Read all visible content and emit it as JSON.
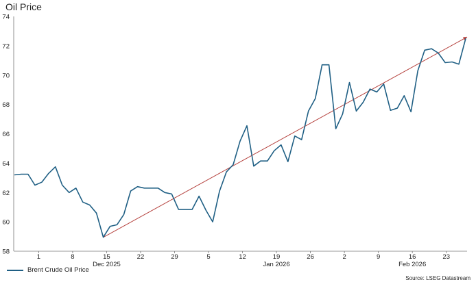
{
  "chart_data": {
    "type": "line",
    "title": "Oil Price",
    "source": "Source: LSEG Datastream",
    "ylim": [
      58,
      74
    ],
    "y_ticks": [
      "58",
      "60",
      "62",
      "64",
      "66",
      "68",
      "70",
      "72",
      "74"
    ],
    "x_tick_labels": [
      "1",
      "8",
      "15",
      "22",
      "29",
      "5",
      "12",
      "19",
      "26",
      "2",
      "9",
      "16",
      "23"
    ],
    "x_period_labels": [
      "Dec 2025",
      "Jan 2026",
      "Feb 2026"
    ],
    "grid": false,
    "legend_position": "bottom-left",
    "series": [
      {
        "name": "Brent Crude Oil Price",
        "color": "#1f5f84",
        "values": [
          63.2,
          63.25,
          63.25,
          62.5,
          62.7,
          63.3,
          63.75,
          62.5,
          62.0,
          62.3,
          61.35,
          61.15,
          60.6,
          58.95,
          59.7,
          59.8,
          60.5,
          62.1,
          62.4,
          62.3,
          62.3,
          62.3,
          62.0,
          61.9,
          60.85,
          60.85,
          60.85,
          61.75,
          60.8,
          60.0,
          62.1,
          63.4,
          63.9,
          65.5,
          66.55,
          63.8,
          64.15,
          64.15,
          64.85,
          65.25,
          64.1,
          65.85,
          65.6,
          67.55,
          68.4,
          70.7,
          70.7,
          66.35,
          67.35,
          69.5,
          67.55,
          68.15,
          69.05,
          68.85,
          69.4,
          67.6,
          67.75,
          68.6,
          67.5,
          70.3,
          71.7,
          71.8,
          71.5,
          70.85,
          70.9,
          70.75,
          72.5
        ]
      }
    ],
    "trend_line": {
      "color": "#b5413d",
      "start": 58.95,
      "end": 72.6
    }
  }
}
